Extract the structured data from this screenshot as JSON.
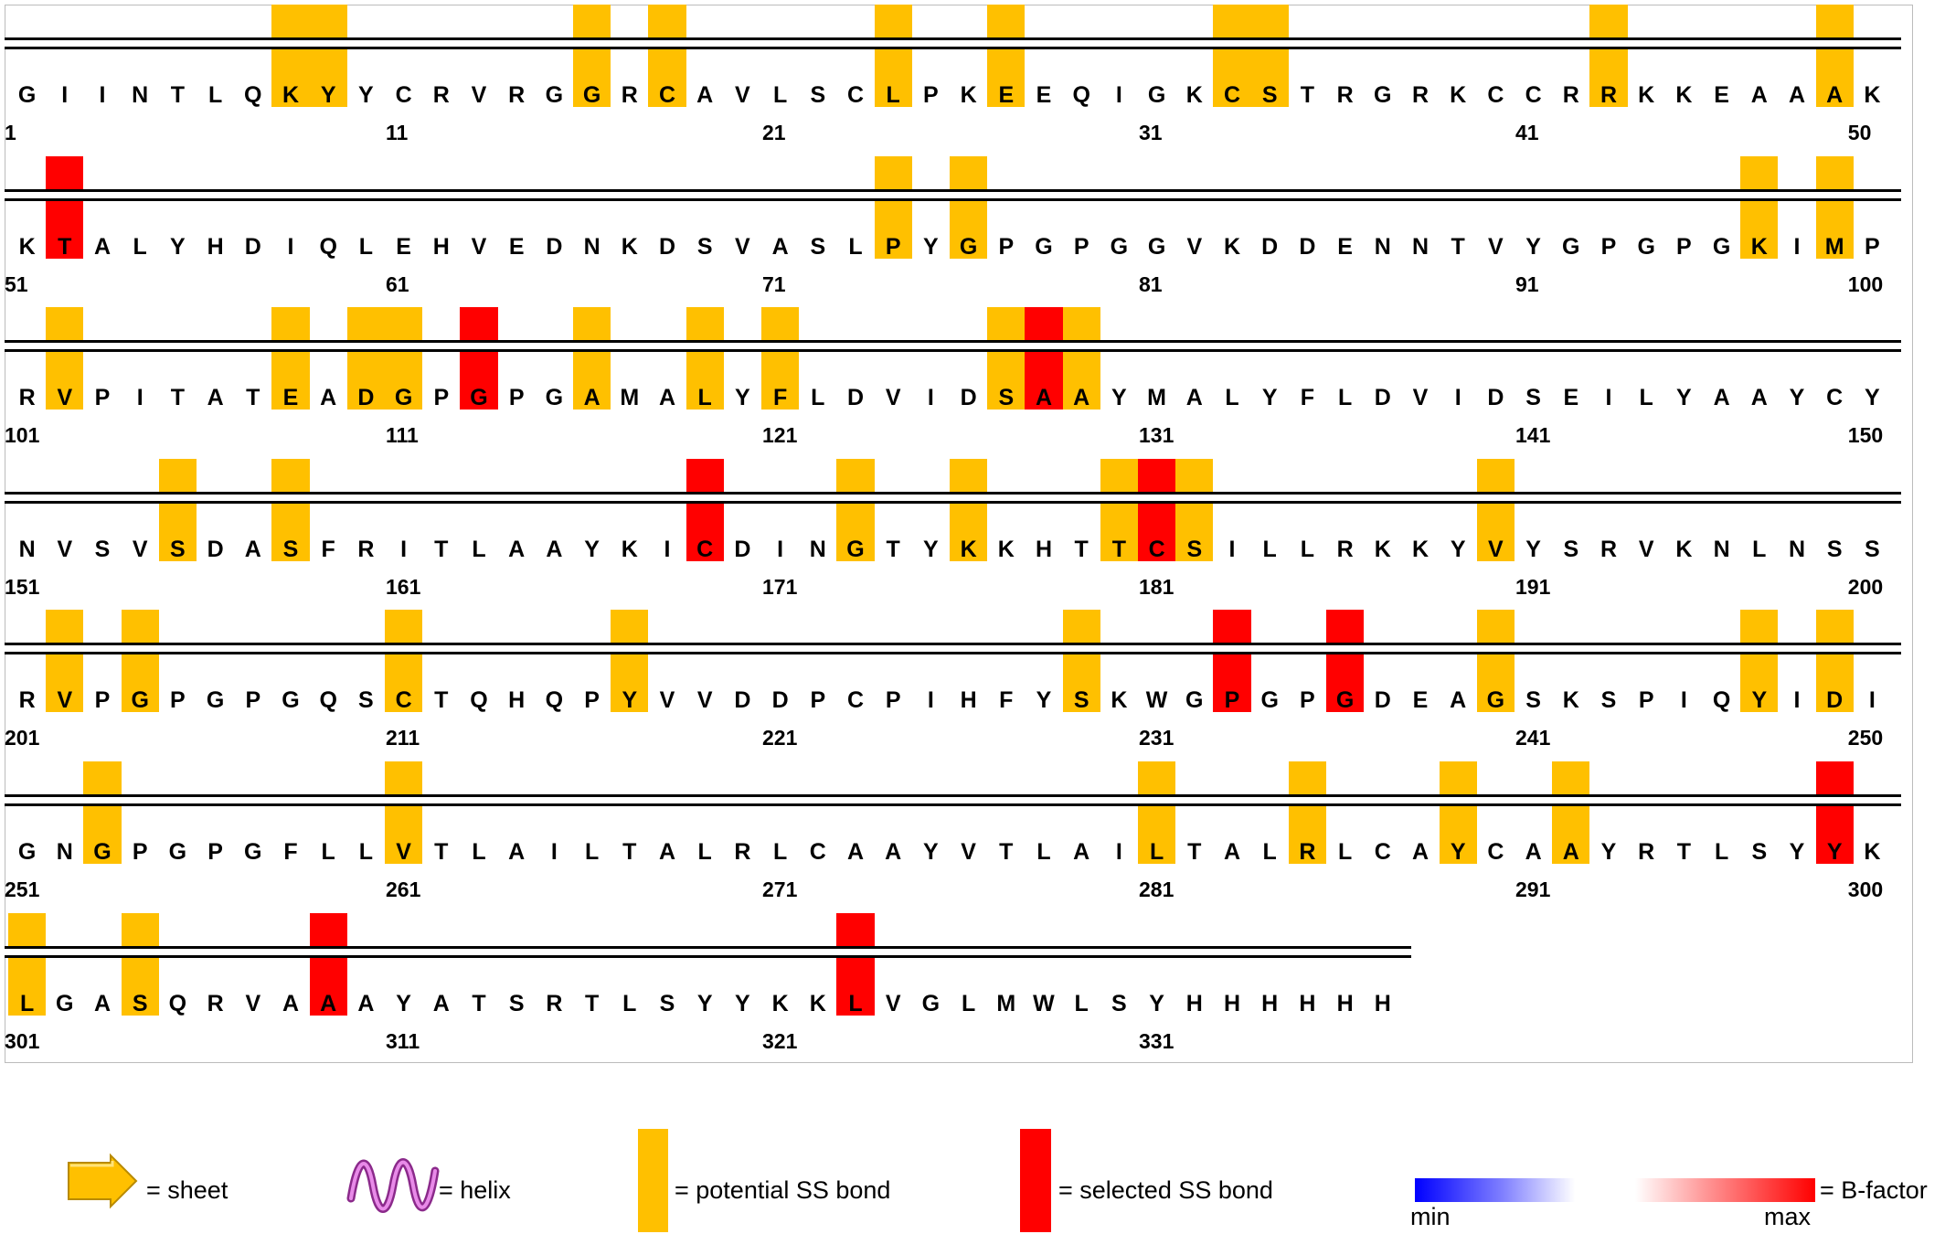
{
  "sequence": "GIINTLQKYYCRVRGGRCAVLSCLPKEEQIGKCSTRGRKCCRRKKEAAAKKTALYHDIQLEHVEDNKDSVASLPYGPGPGGVKDDENNTVYGPGPGKIMPRVPITATEADGPGPGAMALYFLDVIDSAAYMALYFLDVIDSEILYAAYCYNVSVSDASFRITLAAYKICDINGTYKKHTTCSILLRKKYVYSRVKNLNSSRVPGPGPGQSCTQHQPYVVDDPCPIHFYSKWGPGPGDEAGSKSPIQYIDIGNGPGPGFLLVTLAILTALRLCAAYVTLAILTALRLCAYCAAYRTLSYYKLGASQRVAAAYATSRTLSYYKKLVGLMWLSYHHHHHH",
  "residues_per_row": 50,
  "potential_ss_bond_positions": [
    8,
    9,
    16,
    18,
    24,
    27,
    33,
    34,
    43,
    49,
    74,
    76,
    97,
    99,
    102,
    108,
    110,
    111,
    116,
    119,
    121,
    127,
    129,
    155,
    158,
    173,
    176,
    180,
    182,
    190,
    202,
    204,
    211,
    217,
    229,
    240,
    247,
    249,
    253,
    261,
    281,
    285,
    289,
    292,
    301,
    304
  ],
  "selected_ss_bond_positions": [
    52,
    113,
    128,
    169,
    181,
    233,
    236,
    299,
    309,
    323
  ],
  "legend": {
    "sheet_label": "= sheet",
    "helix_label": "= helix",
    "potential_label": "= potential SS bond",
    "selected_label": "= selected SS bond",
    "bfactor_label": "= B-factor",
    "bfactor_min": "min",
    "bfactor_max": "max"
  },
  "colors": {
    "potential": "#ffc000",
    "selected": "#ff0000",
    "helix": "#d65ad6"
  }
}
